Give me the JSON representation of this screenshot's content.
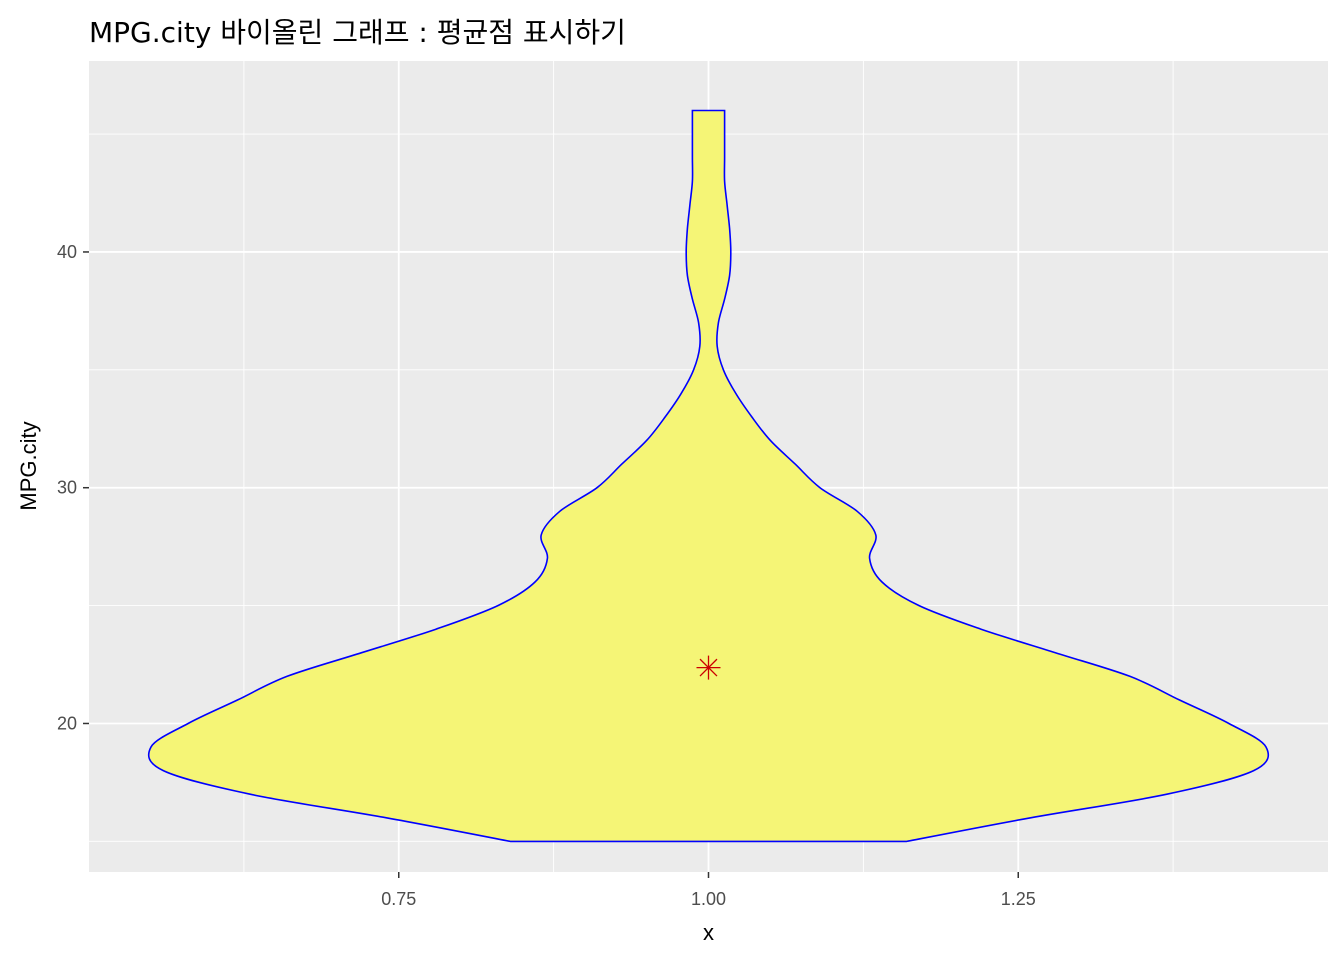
{
  "chart_data": {
    "type": "violin",
    "title": "MPG.city 바이올린 그래프 : 평균점 표시하기",
    "xlabel": "x",
    "ylabel": "MPG.city",
    "xlim": [
      0.5,
      1.5
    ],
    "ylim": [
      13.7,
      48.1
    ],
    "x_ticks": [
      0.75,
      1.0,
      1.25
    ],
    "x_tick_labels": [
      "0.75",
      "1.00",
      "1.25"
    ],
    "y_ticks": [
      20,
      30,
      40
    ],
    "y_tick_labels": [
      "20",
      "30",
      "40"
    ],
    "grid": true,
    "violin": {
      "x": 1,
      "fill": "#f5f576",
      "outline": "#0000ff",
      "profile": [
        {
          "y": 15,
          "hw": 0.16
        },
        {
          "y": 16,
          "hw": 0.26
        },
        {
          "y": 17,
          "hw": 0.37
        },
        {
          "y": 18,
          "hw": 0.44
        },
        {
          "y": 19,
          "hw": 0.45
        },
        {
          "y": 20,
          "hw": 0.42
        },
        {
          "y": 21,
          "hw": 0.38
        },
        {
          "y": 22,
          "hw": 0.34
        },
        {
          "y": 23,
          "hw": 0.28
        },
        {
          "y": 24,
          "hw": 0.22
        },
        {
          "y": 25,
          "hw": 0.17
        },
        {
          "y": 26,
          "hw": 0.14
        },
        {
          "y": 27,
          "hw": 0.13
        },
        {
          "y": 28,
          "hw": 0.135
        },
        {
          "y": 29,
          "hw": 0.12
        },
        {
          "y": 30,
          "hw": 0.09
        },
        {
          "y": 31,
          "hw": 0.07
        },
        {
          "y": 32,
          "hw": 0.05
        },
        {
          "y": 33,
          "hw": 0.035
        },
        {
          "y": 34,
          "hw": 0.022
        },
        {
          "y": 35,
          "hw": 0.012
        },
        {
          "y": 36,
          "hw": 0.007
        },
        {
          "y": 37,
          "hw": 0.008
        },
        {
          "y": 38,
          "hw": 0.013
        },
        {
          "y": 39,
          "hw": 0.017
        },
        {
          "y": 40,
          "hw": 0.018
        },
        {
          "y": 41,
          "hw": 0.017
        },
        {
          "y": 42,
          "hw": 0.015
        },
        {
          "y": 43,
          "hw": 0.013
        },
        {
          "y": 44,
          "hw": 0.013
        },
        {
          "y": 45,
          "hw": 0.013
        },
        {
          "y": 46,
          "hw": 0.013
        }
      ]
    },
    "mean_point": {
      "x": 1,
      "y": 22.37,
      "color": "#cc0000",
      "shape": "asterisk"
    }
  }
}
